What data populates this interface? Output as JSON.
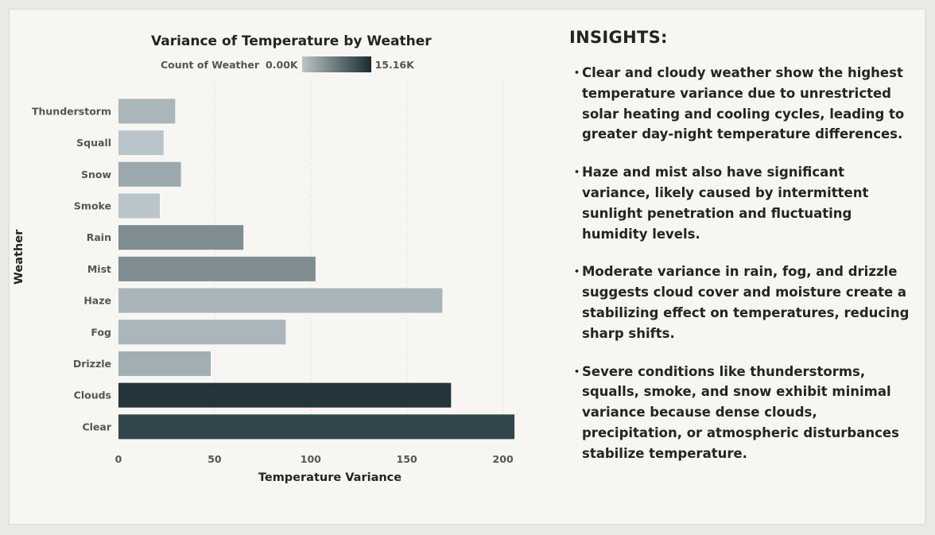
{
  "chart_data": {
    "type": "bar",
    "orientation": "horizontal",
    "title": "Variance of Temperature by Weather",
    "xlabel": "Temperature Variance",
    "ylabel": "Weather",
    "categories": [
      "Thunderstorm",
      "Squall",
      "Snow",
      "Smoke",
      "Rain",
      "Mist",
      "Haze",
      "Fog",
      "Drizzle",
      "Clouds",
      "Clear"
    ],
    "values": [
      29.5,
      23.5,
      32.5,
      21.5,
      65,
      102.5,
      168.5,
      87,
      48,
      173,
      206
    ],
    "bar_colors": [
      "#aab6b9",
      "#b9c5c8",
      "#9ca9ac",
      "#b9c5c8",
      "#7f8d91",
      "#7f8d91",
      "#a9b5b8",
      "#aab6b9",
      "#a2aeb1",
      "#23353b",
      "#33464c"
    ],
    "xlim": [
      0,
      210
    ],
    "xticks": [
      "0",
      "50",
      "100",
      "150",
      "200"
    ],
    "grid": "vertical dotted",
    "legend": {
      "title": "Count of Weather",
      "min_label": "0.00K",
      "max_label": "15.16K",
      "gradient_from": "#b9c5c8",
      "gradient_to": "#1b2b31",
      "placement": "top"
    }
  },
  "insights": {
    "title": "INSIGHTS:",
    "items": [
      "Clear and cloudy weather show the highest temperature variance due to unrestricted solar heating and cooling cycles, leading to greater day-night temperature differences.",
      "Haze and mist also have significant variance, likely caused by intermittent sunlight penetration and fluctuating humidity levels.",
      "Moderate variance in rain, fog, and drizzle suggests cloud cover and moisture create a stabilizing effect on temperatures, reducing sharp shifts.",
      "Severe conditions like thunderstorms, squalls, smoke, and snow exhibit minimal variance because dense clouds, precipitation, or atmospheric disturbances stabilize temperature."
    ]
  }
}
